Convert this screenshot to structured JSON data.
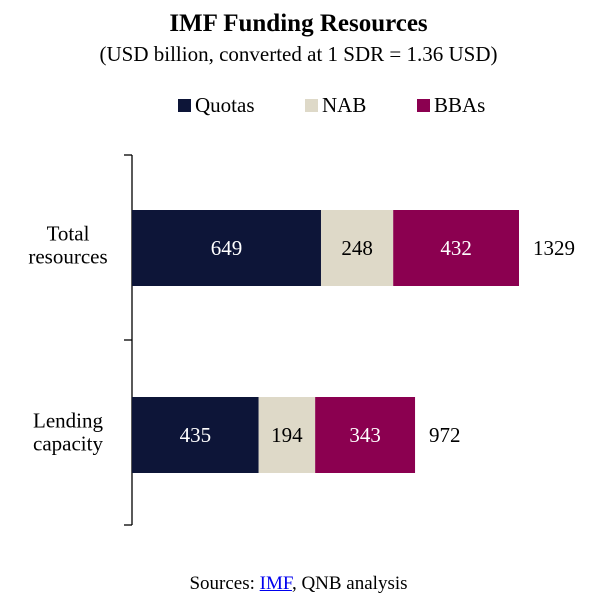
{
  "title": "IMF Funding Resources",
  "subtitle": "(USD billion, converted at 1 SDR = 1.36 USD)",
  "chart_data": {
    "type": "bar",
    "orientation": "horizontal",
    "stacked": true,
    "categories": [
      [
        "Total",
        "resources"
      ],
      [
        "Lending",
        "capacity"
      ]
    ],
    "series": [
      {
        "name": "Quotas",
        "values": [
          649,
          435
        ],
        "color": "#0d1538",
        "label_color": "#ffffff"
      },
      {
        "name": "NAB",
        "values": [
          248,
          194
        ],
        "color": "#ded9c8",
        "label_color": "#000000"
      },
      {
        "name": "BBAs",
        "values": [
          432,
          343
        ],
        "color": "#8b0050",
        "label_color": "#ffffff"
      }
    ],
    "totals": [
      "1329",
      "972"
    ],
    "legend_position": "top",
    "grid": false
  },
  "footer": {
    "prefix": "Sources: ",
    "link_text": "IMF",
    "suffix": ", QNB analysis"
  }
}
